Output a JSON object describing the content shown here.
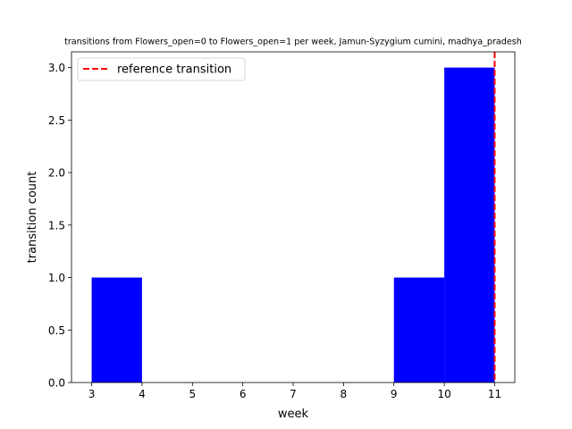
{
  "chart_data": {
    "type": "bar",
    "title": "transitions from Flowers_open=0 to Flowers_open=1 per week, Jamun-Syzygium cumini, madhya_pradesh",
    "xlabel": "week",
    "ylabel": "transition count",
    "bins": [
      {
        "x0": 3,
        "x1": 4,
        "value": 1
      },
      {
        "x0": 4,
        "x1": 5,
        "value": 0
      },
      {
        "x0": 5,
        "x1": 6,
        "value": 0
      },
      {
        "x0": 6,
        "x1": 7,
        "value": 0
      },
      {
        "x0": 7,
        "x1": 8,
        "value": 0
      },
      {
        "x0": 8,
        "x1": 9,
        "value": 0
      },
      {
        "x0": 9,
        "x1": 10,
        "value": 1
      },
      {
        "x0": 10,
        "x1": 11,
        "value": 3
      }
    ],
    "bar_color": "#0000ff",
    "reference_line": {
      "x": 11,
      "label": "reference transition",
      "color": "#ff0000",
      "style": "dashed"
    },
    "xlim": [
      2.6,
      11.4
    ],
    "ylim": [
      0,
      3.15
    ],
    "xticks": [
      "3",
      "4",
      "5",
      "6",
      "7",
      "8",
      "9",
      "10",
      "11"
    ],
    "yticks": [
      "0.0",
      "0.5",
      "1.0",
      "1.5",
      "2.0",
      "2.5",
      "3.0"
    ],
    "grid": false,
    "legend_position": "top-left"
  }
}
